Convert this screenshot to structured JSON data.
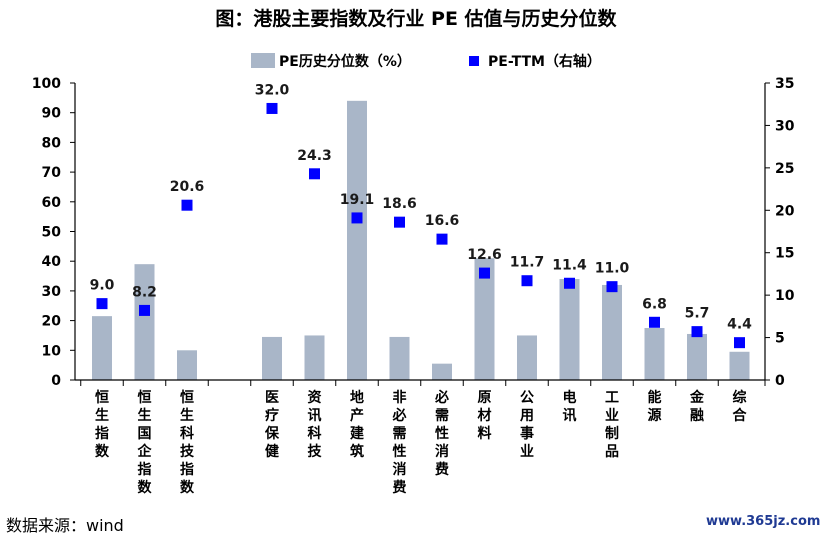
{
  "title": "图：港股主要指数及行业 PE 估值与历史分位数",
  "source": "数据来源：wind",
  "watermark": "www.365jz.com",
  "colors": {
    "bar": "#a9b6c8",
    "marker": "#0000ff",
    "axis": "#000000"
  },
  "chart_data": {
    "type": "bar",
    "categories": [
      "恒生指数",
      "恒生国企指数",
      "恒生科技指数",
      "",
      "医疗保健",
      "资讯科技",
      "地产建筑",
      "非必需性消费",
      "必需性消费",
      "原材料",
      "公用事业",
      "电讯",
      "工业制品",
      "能源",
      "金融",
      "综合"
    ],
    "series": [
      {
        "name": "PE历史分位数（%）",
        "axis": "left",
        "type": "bar",
        "values": [
          21.5,
          39,
          10,
          null,
          14.5,
          15,
          94,
          14.5,
          5.5,
          41,
          15,
          34,
          32,
          17.5,
          15.5,
          9.5
        ]
      },
      {
        "name": "PE-TTM（右轴）",
        "axis": "right",
        "type": "scatter",
        "values": [
          9.0,
          8.2,
          20.6,
          null,
          32.0,
          24.3,
          19.1,
          18.6,
          16.6,
          12.6,
          11.7,
          11.4,
          11.0,
          6.8,
          5.7,
          4.4
        ],
        "labels": [
          "9.0",
          "8.2",
          "20.6",
          "",
          "32.0",
          "24.3",
          "19.1",
          "18.6",
          "16.6",
          "12.6",
          "11.7",
          "11.4",
          "11.0",
          "6.8",
          "5.7",
          "4.4"
        ]
      }
    ],
    "ylim_left": [
      0,
      100
    ],
    "yticks_left": [
      "0",
      "10",
      "20",
      "30",
      "40",
      "50",
      "60",
      "70",
      "80",
      "90",
      "100"
    ],
    "ylim_right": [
      0,
      35
    ],
    "yticks_right": [
      "0",
      "5",
      "10",
      "15",
      "20",
      "25",
      "30",
      "35"
    ],
    "legend_position": "top-center",
    "grid": false
  }
}
